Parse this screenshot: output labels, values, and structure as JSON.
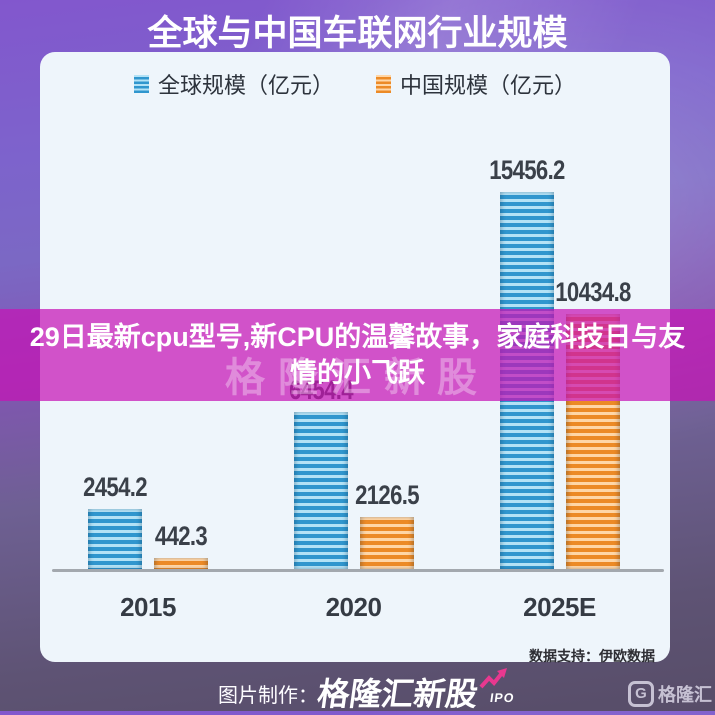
{
  "title": "全球与中国车联网行业规模",
  "chart_data": {
    "type": "bar",
    "categories": [
      "2015",
      "2020",
      "2025E"
    ],
    "series": [
      {
        "name": "全球规模（亿元）",
        "color": "#3096ce",
        "color_light": "#b3e2f6",
        "values": [
          2454.2,
          6454.4,
          15456.2
        ]
      },
      {
        "name": "中国规模（亿元）",
        "color": "#ec8a26",
        "color_light": "#ffd6a6",
        "values": [
          442.3,
          2126.5,
          10434.8
        ]
      }
    ],
    "ylim": [
      0,
      15456.2
    ],
    "title": "全球与中国车联网行业规模",
    "xlabel": "",
    "ylabel": "",
    "legend_position": "top",
    "grid": false,
    "value_labels": true
  },
  "overlay_banner": {
    "text": "29日最新cpu型号,新CPU的温馨故事，家庭科技日与友情的小飞跃",
    "color": "#c614b6"
  },
  "watermark": "格隆汇新股",
  "data_support": "数据支持：伊欧数据",
  "footer": {
    "credit_label": "图片制作：",
    "brand": "格隆汇新股",
    "brand_sub": "IPO",
    "logo_letter": "G",
    "logo_text": "格隆汇"
  }
}
